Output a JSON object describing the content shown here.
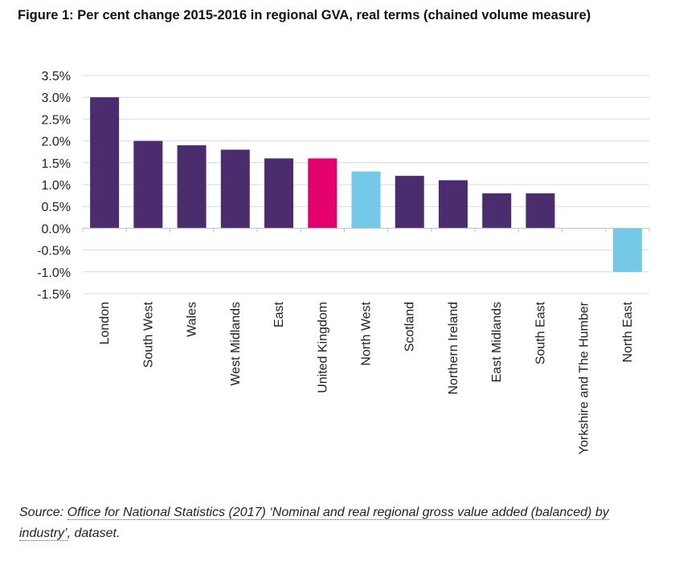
{
  "title": "Figure 1: Per cent change 2015-2016 in regional GVA, real terms (chained volume measure)",
  "source": {
    "prefix": "Source: ",
    "link_text": "Office for National Statistics (2017) ‘Nominal and real regional gross value added (balanced) by industry’",
    "suffix": ", dataset."
  },
  "colors": {
    "regions": "#4b2c6f",
    "united_kingdom": "#e4006d",
    "north_west_and_north_east": "#74c8e8",
    "gridline": "#d9d9d9"
  },
  "chart_data": {
    "type": "bar",
    "title": "Figure 1: Per cent change 2015-2016 in regional GVA, real terms (chained volume measure)",
    "categories": [
      "London",
      "South West",
      "Wales",
      "West Midlands",
      "East",
      "United Kingdom",
      "North West",
      "Scotland",
      "Northern Ireland",
      "East Midlands",
      "South East",
      "Yorkshire and The Humber",
      "North East"
    ],
    "values": [
      3.0,
      2.0,
      1.9,
      1.8,
      1.6,
      1.6,
      1.3,
      1.2,
      1.1,
      0.8,
      0.8,
      0.0,
      -1.0
    ],
    "bar_colors": [
      "#4b2c6f",
      "#4b2c6f",
      "#4b2c6f",
      "#4b2c6f",
      "#4b2c6f",
      "#e4006d",
      "#74c8e8",
      "#4b2c6f",
      "#4b2c6f",
      "#4b2c6f",
      "#4b2c6f",
      "#4b2c6f",
      "#74c8e8"
    ],
    "ylim": [
      -1.5,
      3.5
    ],
    "yticks": [
      3.5,
      3.0,
      2.5,
      2.0,
      1.5,
      1.0,
      0.5,
      0.0,
      -0.5,
      -1.0,
      -1.5
    ],
    "ytick_labels": [
      "3.5%",
      "3.0%",
      "2.5%",
      "2.0%",
      "1.5%",
      "1.0%",
      "0.5%",
      "0.0%",
      "-0.5%",
      "-1.0%",
      "-1.5%"
    ],
    "grid": true,
    "xlabel": "",
    "ylabel": ""
  }
}
